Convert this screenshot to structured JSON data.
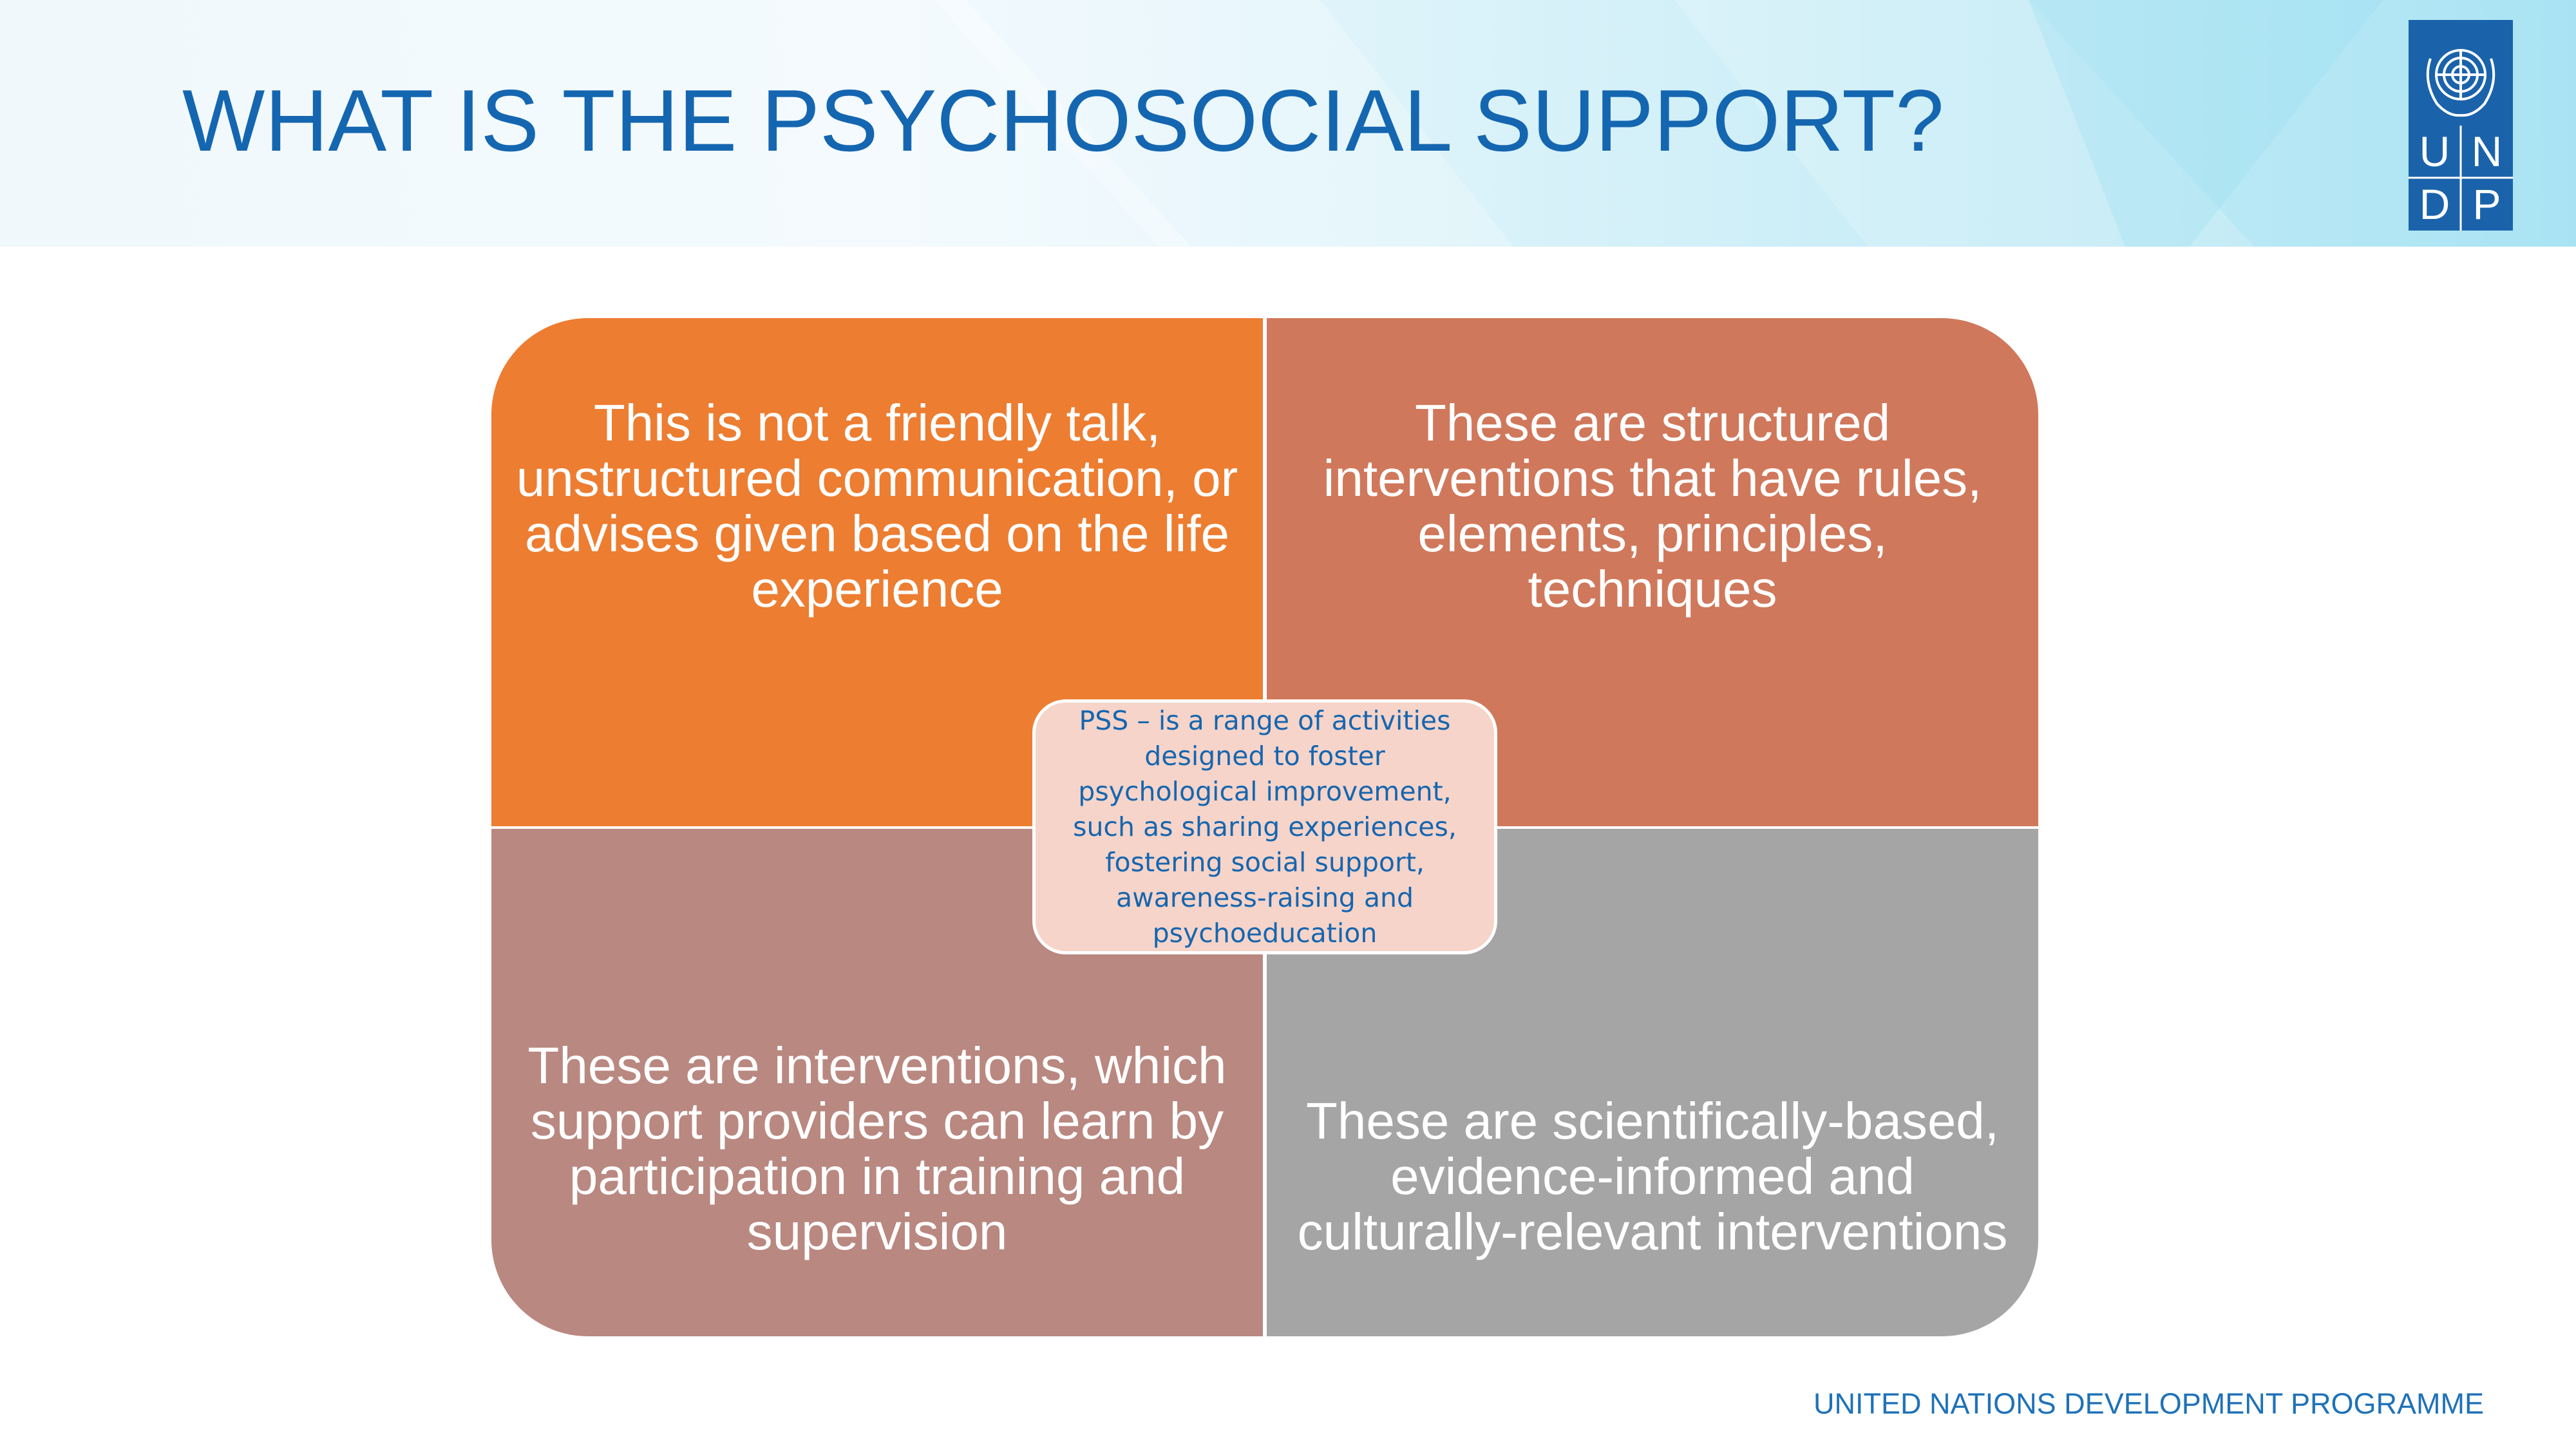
{
  "header": {
    "title": "WHAT IS THE PSYCHOSOCIAL SUPPORT?"
  },
  "logo": {
    "letters": [
      "U",
      "N",
      "D",
      "P"
    ],
    "icon": "un-emblem-icon"
  },
  "quadrants": {
    "top_left": "This is not a friendly talk, unstructured communication, or advises given based on the life experience",
    "top_right": "These are structured interventions that have rules, elements, principles, techniques",
    "bottom_left": "These are interventions, which support providers can learn by participation in training and supervision",
    "bottom_right": "These are scientifically-based, evidence-informed and culturally-relevant interventions"
  },
  "center": {
    "text": "PSS – is a range of activities designed to foster psychological improvement, such as sharing experiences, fostering social support, awareness-raising and psychoeducation"
  },
  "footer": {
    "text": "UNITED NATIONS DEVELOPMENT PROGRAMME"
  },
  "colors": {
    "title": "#1566b0",
    "top_left": "#ed7d31",
    "top_right": "#d0785b",
    "bottom_left": "#b98880",
    "bottom_right": "#a5a5a5",
    "center_fill": "#f6d4c9",
    "logo": "#1a63ab"
  }
}
